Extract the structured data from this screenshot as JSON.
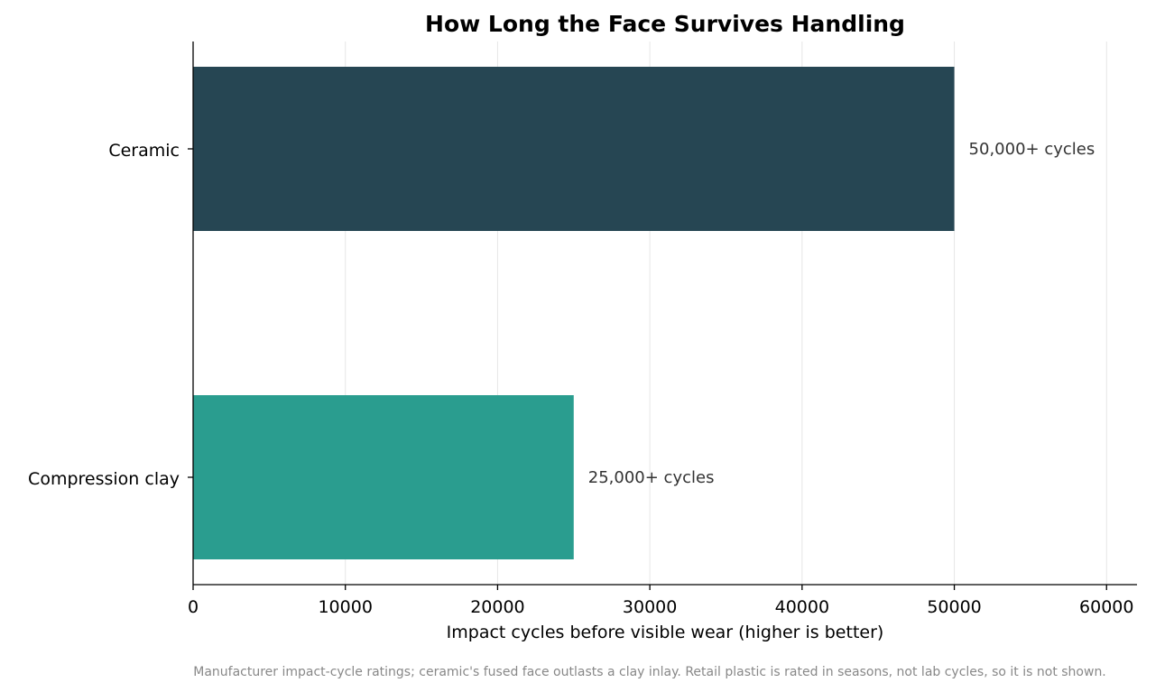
{
  "chart_data": {
    "type": "bar",
    "orientation": "horizontal",
    "title": "How Long the Face Survives Handling",
    "xlabel": "Impact cycles before visible wear (higher is better)",
    "ylabel": "",
    "xlim": [
      0,
      62000
    ],
    "xticks": [
      0,
      10000,
      20000,
      30000,
      40000,
      50000,
      60000
    ],
    "xtick_labels": [
      "0",
      "10000",
      "20000",
      "30000",
      "40000",
      "50000",
      "60000"
    ],
    "grid": "vertical",
    "categories": [
      "Ceramic",
      "Compression clay"
    ],
    "values": [
      50000,
      25000
    ],
    "data_labels": [
      "50,000+ cycles",
      "25,000+ cycles"
    ],
    "colors": [
      "#264653",
      "#2a9d8f"
    ],
    "footnote": "Manufacturer impact-cycle ratings; ceramic's fused face outlasts a clay inlay. Retail plastic is rated in seasons, not lab cycles, so it is not shown."
  }
}
